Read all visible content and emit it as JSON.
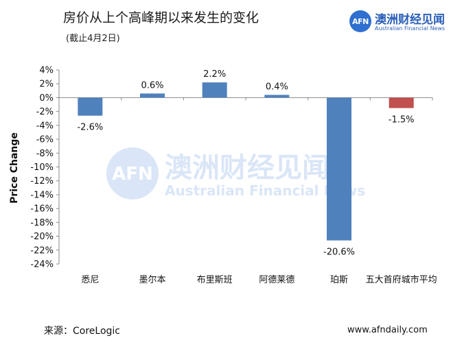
{
  "header": {
    "title": "房价从上个高峰期以来发生的变化",
    "subtitle": "(截止4月2日)"
  },
  "logo": {
    "mark": "AFN",
    "name_cn": "澳洲财经见闻",
    "name_en": "Australian Financial News"
  },
  "watermark": {
    "mark": "AFN",
    "name_cn": "澳洲财经见闻",
    "name_en": "Australian Financial News"
  },
  "footer": {
    "source": "来源：CoreLogic",
    "website": "www.afndaily.com"
  },
  "colors": {
    "bar_default": "#4f81bd",
    "bar_highlight": "#c0504d",
    "axis": "#888888",
    "logo": "#2f6fd0"
  },
  "chart_data": {
    "type": "bar",
    "categories": [
      "悉尼",
      "墨尔本",
      "布里斯班",
      "阿德莱德",
      "珀斯",
      "五大首府城市平均"
    ],
    "values": [
      -2.6,
      0.6,
      2.2,
      0.4,
      -20.6,
      -1.5
    ],
    "value_labels": [
      "-2.6%",
      "0.6%",
      "2.2%",
      "0.4%",
      "-20.6%",
      "-1.5%"
    ],
    "bar_colors": [
      "#4f81bd",
      "#4f81bd",
      "#4f81bd",
      "#4f81bd",
      "#4f81bd",
      "#c0504d"
    ],
    "title": "房价从上个高峰期以来发生的变化",
    "subtitle": "(截止4月2日)",
    "xlabel": "",
    "ylabel": "Price Change",
    "ylim": [
      -24,
      4
    ],
    "yticks": [
      4,
      2,
      0,
      -2,
      -4,
      -6,
      -8,
      -10,
      -12,
      -14,
      -16,
      -18,
      -20,
      -22,
      -24
    ],
    "ytick_labels": [
      "4%",
      "2%",
      "0%",
      "-2%",
      "-4%",
      "-6%",
      "-8%",
      "-10%",
      "-12%",
      "-14%",
      "-16%",
      "-18%",
      "-20%",
      "-22%",
      "-24%"
    ],
    "grid": false,
    "legend": "none"
  }
}
